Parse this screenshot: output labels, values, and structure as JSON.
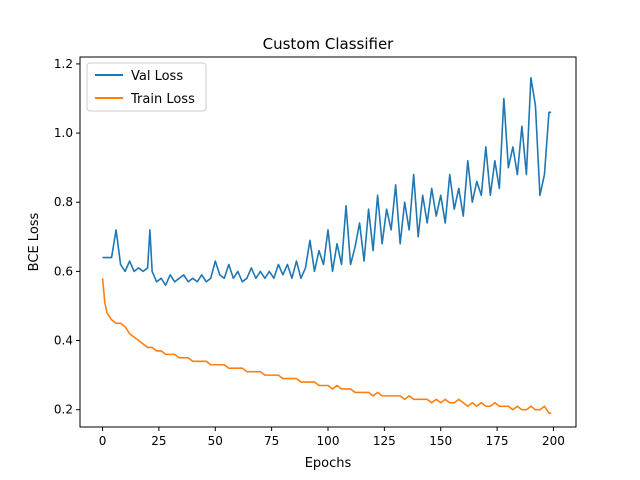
{
  "chart_data": {
    "type": "line",
    "title": "Custom Classifier",
    "xlabel": "Epochs",
    "ylabel": "BCE Loss",
    "xlim": [
      -10,
      210
    ],
    "ylim": [
      0.15,
      1.22
    ],
    "xticks": [
      0,
      25,
      50,
      75,
      100,
      125,
      150,
      175,
      200
    ],
    "yticks": [
      0.2,
      0.4,
      0.6,
      0.8,
      1.0,
      1.2
    ],
    "xtick_labels": [
      "0",
      "25",
      "50",
      "75",
      "100",
      "125",
      "150",
      "175",
      "200"
    ],
    "ytick_labels": [
      "0.2",
      "0.4",
      "0.6",
      "0.8",
      "1.0",
      "1.2"
    ],
    "grid": false,
    "legend_position": "upper-left",
    "series": [
      {
        "name": "Val Loss",
        "color": "#1f77b4",
        "x": [
          0,
          4,
          6,
          8,
          10,
          12,
          14,
          16,
          18,
          20,
          21,
          22,
          24,
          26,
          28,
          30,
          32,
          34,
          36,
          38,
          40,
          42,
          44,
          46,
          48,
          50,
          52,
          54,
          56,
          58,
          60,
          62,
          64,
          66,
          68,
          70,
          72,
          74,
          76,
          78,
          80,
          82,
          84,
          86,
          88,
          90,
          92,
          94,
          96,
          98,
          100,
          102,
          104,
          106,
          108,
          110,
          112,
          114,
          116,
          118,
          120,
          122,
          124,
          126,
          128,
          130,
          132,
          134,
          136,
          138,
          140,
          142,
          144,
          146,
          148,
          150,
          152,
          154,
          156,
          158,
          160,
          162,
          164,
          166,
          168,
          170,
          172,
          174,
          176,
          178,
          180,
          182,
          184,
          186,
          188,
          190,
          192,
          194,
          196,
          198,
          199
        ],
        "y": [
          0.64,
          0.64,
          0.72,
          0.62,
          0.6,
          0.63,
          0.6,
          0.61,
          0.6,
          0.61,
          0.72,
          0.6,
          0.57,
          0.58,
          0.56,
          0.59,
          0.57,
          0.58,
          0.59,
          0.57,
          0.58,
          0.57,
          0.59,
          0.57,
          0.58,
          0.63,
          0.59,
          0.58,
          0.62,
          0.58,
          0.6,
          0.57,
          0.58,
          0.61,
          0.58,
          0.6,
          0.58,
          0.6,
          0.58,
          0.62,
          0.59,
          0.62,
          0.58,
          0.63,
          0.58,
          0.61,
          0.69,
          0.6,
          0.66,
          0.62,
          0.72,
          0.6,
          0.68,
          0.62,
          0.79,
          0.62,
          0.67,
          0.74,
          0.63,
          0.78,
          0.66,
          0.82,
          0.68,
          0.78,
          0.72,
          0.85,
          0.68,
          0.8,
          0.72,
          0.88,
          0.7,
          0.82,
          0.74,
          0.84,
          0.76,
          0.82,
          0.74,
          0.88,
          0.78,
          0.84,
          0.76,
          0.92,
          0.8,
          0.86,
          0.82,
          0.96,
          0.82,
          0.92,
          0.84,
          1.1,
          0.9,
          0.96,
          0.88,
          1.02,
          0.88,
          1.16,
          1.08,
          0.82,
          0.88,
          1.06,
          1.06
        ]
      },
      {
        "name": "Train Loss",
        "color": "#ff7f0e",
        "x": [
          0,
          1,
          2,
          4,
          6,
          8,
          10,
          12,
          14,
          16,
          18,
          20,
          22,
          24,
          26,
          28,
          30,
          32,
          34,
          36,
          38,
          40,
          42,
          44,
          46,
          48,
          50,
          52,
          54,
          56,
          58,
          60,
          62,
          64,
          66,
          68,
          70,
          72,
          74,
          76,
          78,
          80,
          82,
          84,
          86,
          88,
          90,
          92,
          94,
          96,
          98,
          100,
          102,
          104,
          106,
          108,
          110,
          112,
          114,
          116,
          118,
          120,
          122,
          124,
          126,
          128,
          130,
          132,
          134,
          136,
          138,
          140,
          142,
          144,
          146,
          148,
          150,
          152,
          154,
          156,
          158,
          160,
          162,
          164,
          166,
          168,
          170,
          172,
          174,
          176,
          178,
          180,
          182,
          184,
          186,
          188,
          190,
          192,
          194,
          196,
          198,
          199
        ],
        "y": [
          0.58,
          0.51,
          0.48,
          0.46,
          0.45,
          0.45,
          0.44,
          0.42,
          0.41,
          0.4,
          0.39,
          0.38,
          0.38,
          0.37,
          0.37,
          0.36,
          0.36,
          0.36,
          0.35,
          0.35,
          0.35,
          0.34,
          0.34,
          0.34,
          0.34,
          0.33,
          0.33,
          0.33,
          0.33,
          0.32,
          0.32,
          0.32,
          0.32,
          0.31,
          0.31,
          0.31,
          0.31,
          0.3,
          0.3,
          0.3,
          0.3,
          0.29,
          0.29,
          0.29,
          0.29,
          0.28,
          0.28,
          0.28,
          0.28,
          0.27,
          0.27,
          0.27,
          0.26,
          0.27,
          0.26,
          0.26,
          0.26,
          0.25,
          0.25,
          0.25,
          0.25,
          0.24,
          0.25,
          0.24,
          0.24,
          0.24,
          0.24,
          0.24,
          0.23,
          0.24,
          0.23,
          0.23,
          0.23,
          0.23,
          0.22,
          0.23,
          0.22,
          0.23,
          0.22,
          0.22,
          0.23,
          0.22,
          0.21,
          0.22,
          0.21,
          0.22,
          0.21,
          0.21,
          0.22,
          0.21,
          0.21,
          0.21,
          0.2,
          0.21,
          0.2,
          0.2,
          0.21,
          0.2,
          0.2,
          0.21,
          0.19,
          0.19
        ]
      }
    ]
  }
}
